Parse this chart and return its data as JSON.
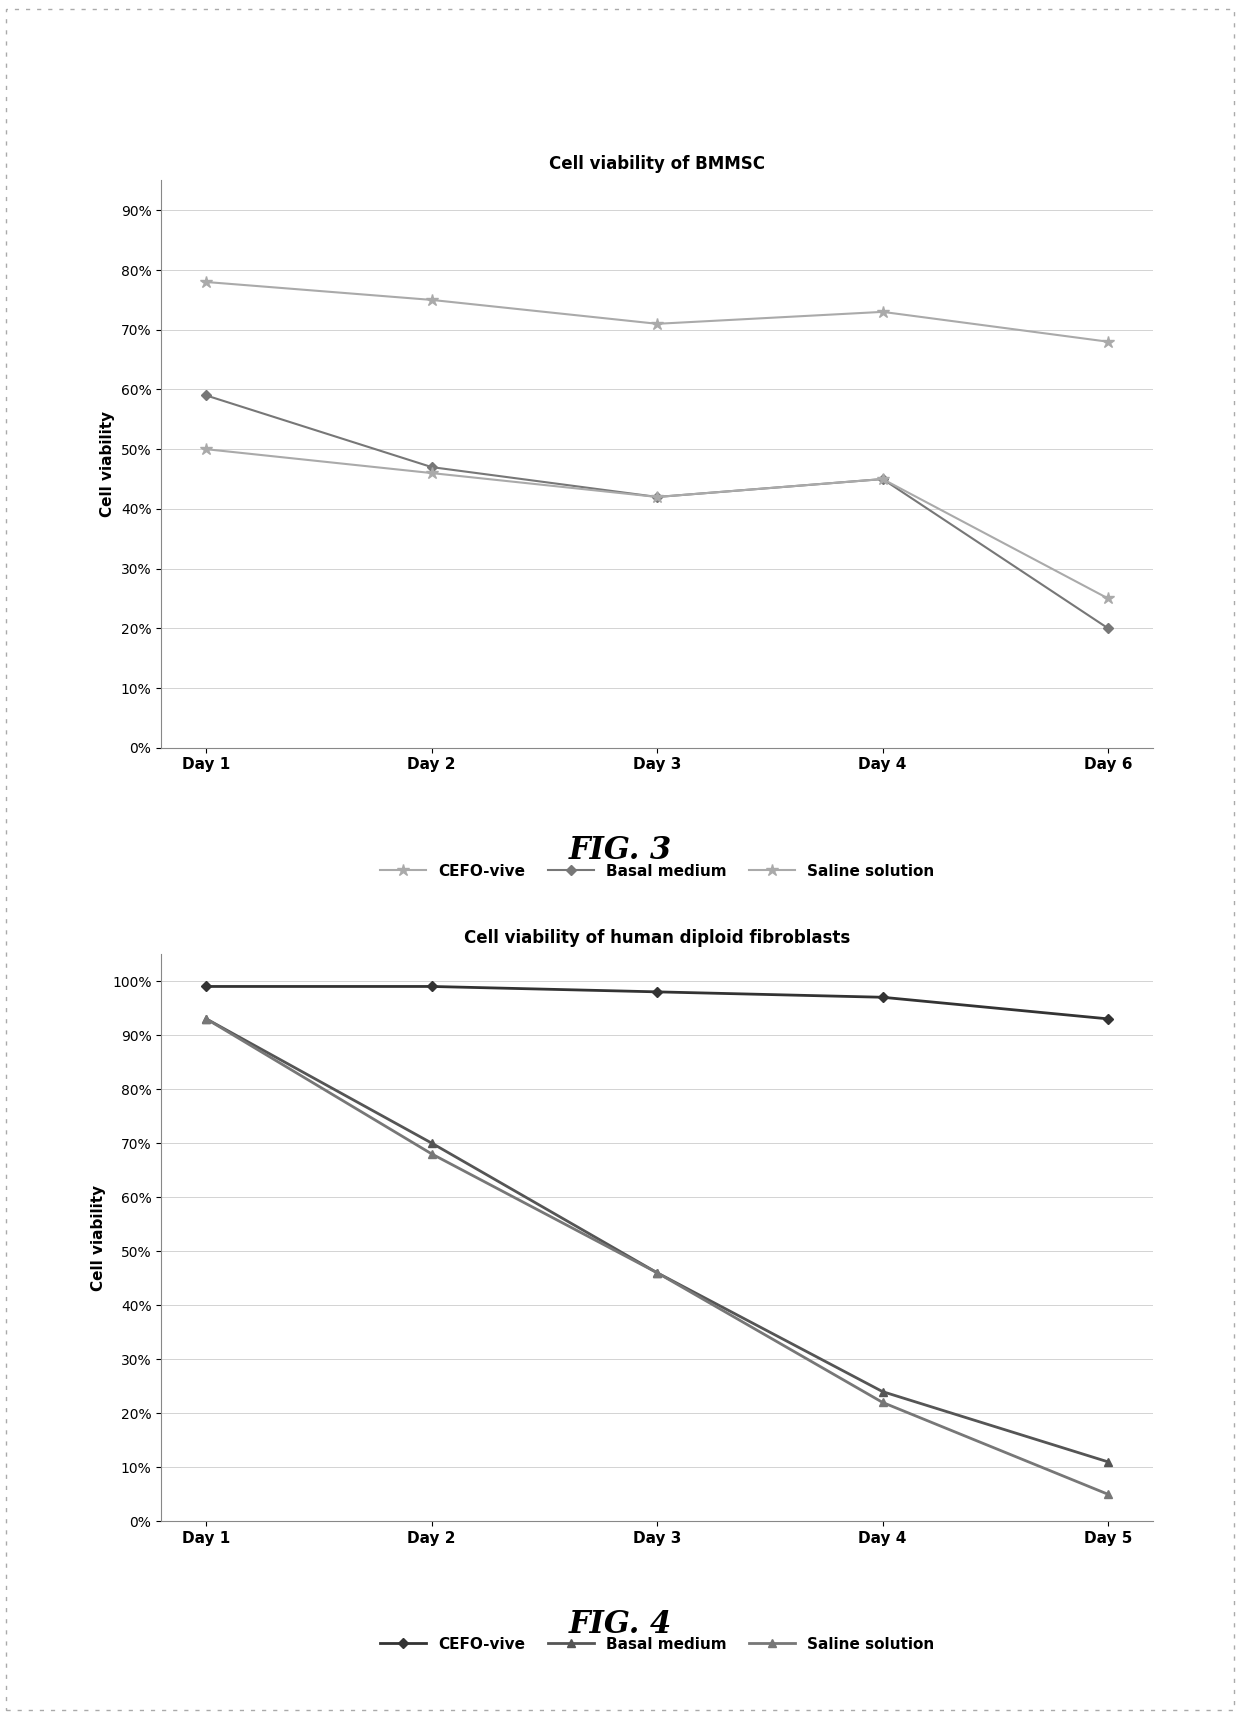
{
  "fig3": {
    "title": "Cell viability of BMMSC",
    "xlabel_ticks": [
      "Day 1",
      "Day 2",
      "Day 3",
      "Day 4",
      "Day 6"
    ],
    "ylabel": "Cell viability",
    "yticks": [
      0,
      10,
      20,
      30,
      40,
      50,
      60,
      70,
      80,
      90
    ],
    "ylim": [
      0,
      95
    ],
    "series": {
      "CEFO-vive": {
        "values": [
          78,
          75,
          71,
          73,
          68
        ],
        "color": "#aaaaaa",
        "marker": "*",
        "linewidth": 1.5,
        "markersize": 9
      },
      "Basal medium": {
        "values": [
          59,
          47,
          42,
          45,
          20
        ],
        "color": "#777777",
        "marker": "D",
        "linewidth": 1.5,
        "markersize": 5
      },
      "Saline solution": {
        "values": [
          50,
          46,
          42,
          45,
          25
        ],
        "color": "#aaaaaa",
        "marker": "*",
        "linewidth": 1.5,
        "markersize": 9
      }
    },
    "fig_label": "FIG. 3"
  },
  "fig4": {
    "title": "Cell viability of human diploid fibroblasts",
    "xlabel_ticks": [
      "Day 1",
      "Day 2",
      "Day 3",
      "Day 4",
      "Day 5"
    ],
    "ylabel": "Cell viability",
    "yticks": [
      0,
      10,
      20,
      30,
      40,
      50,
      60,
      70,
      80,
      90,
      100
    ],
    "ylim": [
      0,
      105
    ],
    "series": {
      "CEFO-vive": {
        "values": [
          99,
          99,
          98,
          97,
          93
        ],
        "color": "#333333",
        "marker": "D",
        "linewidth": 2.0,
        "markersize": 5
      },
      "Basal medium": {
        "values": [
          93,
          70,
          46,
          24,
          11
        ],
        "color": "#555555",
        "marker": "^",
        "linewidth": 2.0,
        "markersize": 6
      },
      "Saline solution": {
        "values": [
          93,
          68,
          46,
          22,
          5
        ],
        "color": "#777777",
        "marker": "^",
        "linewidth": 2.0,
        "markersize": 6
      }
    },
    "fig_label": "FIG. 4"
  },
  "background_color": "#ffffff",
  "grid_color": "#cccccc",
  "title_fontsize": 12,
  "axis_label_fontsize": 11,
  "tick_fontsize": 10,
  "legend_fontsize": 11,
  "fig_label_fontsize": 22
}
